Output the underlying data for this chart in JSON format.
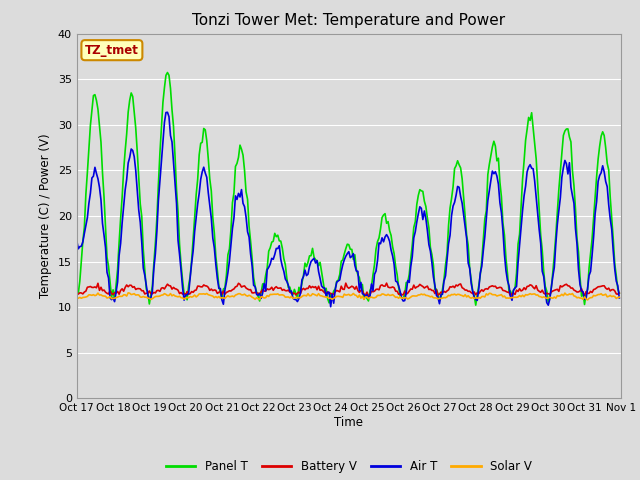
{
  "title": "Tonzi Tower Met: Temperature and Power",
  "ylabel": "Temperature (C) / Power (V)",
  "xlabel": "Time",
  "ylim": [
    0,
    40
  ],
  "background_color": "#dcdcdc",
  "plot_bg_color": "#dcdcdc",
  "grid_color": "#ffffff",
  "tz_label": "TZ_tmet",
  "x_tick_labels": [
    "Oct 17",
    "Oct 18",
    "Oct 19",
    "Oct 20",
    "Oct 21",
    "Oct 22",
    "Oct 23",
    "Oct 24",
    "Oct 25",
    "Oct 26",
    "Oct 27",
    "Oct 28",
    "Oct 29",
    "Oct 30",
    "Oct 31",
    "Nov 1"
  ],
  "panel_t_color": "#00dd00",
  "battery_v_color": "#dd0000",
  "air_t_color": "#0000dd",
  "solar_v_color": "#ffaa00",
  "linewidth": 1.2
}
